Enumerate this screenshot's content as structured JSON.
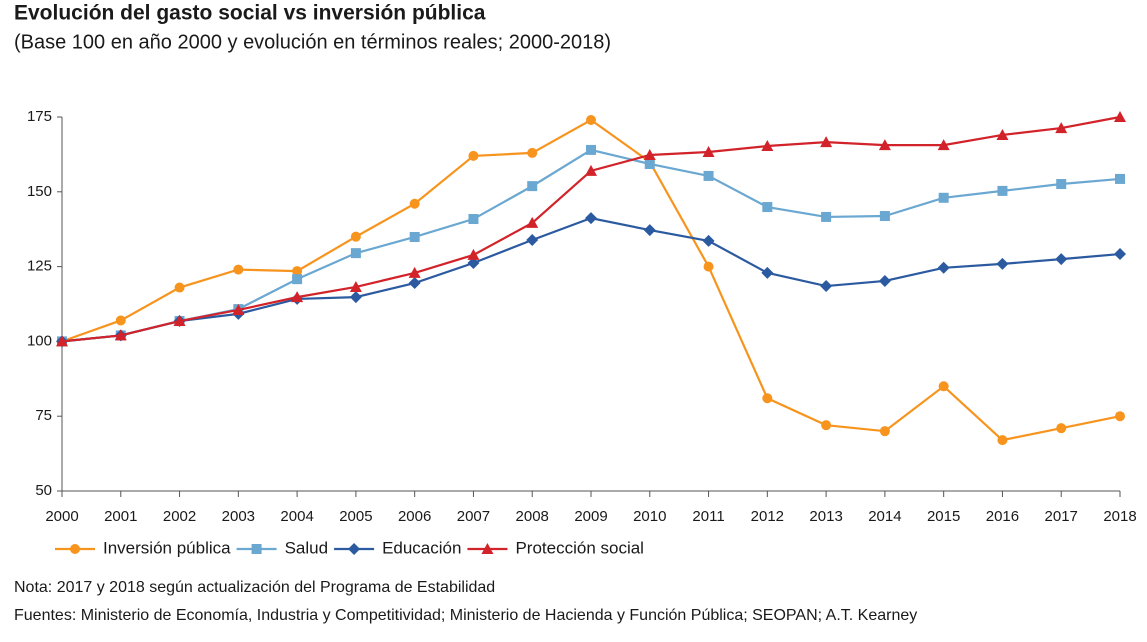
{
  "chart_data": {
    "type": "line",
    "title": "Evolución del gasto social vs inversión pública",
    "subtitle": "(Base 100 en año 2000 y evolución en términos reales; 2000-2018)",
    "categories": [
      "2000",
      "2001",
      "2002",
      "2003",
      "2004",
      "2005",
      "2006",
      "2007",
      "2008",
      "2009",
      "2010",
      "2011",
      "2012",
      "2013",
      "2014",
      "2015",
      "2016",
      "2017",
      "2018"
    ],
    "ylim": [
      50,
      175
    ],
    "yticks": [
      50,
      75,
      100,
      125,
      150,
      175
    ],
    "grid": false,
    "legend": "bottom",
    "series": [
      {
        "name": "Inversión pública",
        "color": "#f7941d",
        "marker": "circle",
        "values": [
          100,
          107,
          118,
          124,
          123.5,
          135,
          146,
          162,
          163,
          174,
          160,
          125,
          81,
          72,
          70,
          85,
          67,
          71,
          75
        ]
      },
      {
        "name": "Salud",
        "color": "#6aa7d1",
        "marker": "square",
        "values": [
          100,
          102,
          106.8,
          110.8,
          120.8,
          129.5,
          134.9,
          140.9,
          151.9,
          164,
          159.3,
          155.3,
          144.9,
          141.6,
          141.9,
          148,
          150.3,
          152.6,
          154.3
        ]
      },
      {
        "name": "Educación",
        "color": "#2c5aa0",
        "marker": "diamond",
        "values": [
          100,
          102,
          106.8,
          109.2,
          114.2,
          114.8,
          119.5,
          126.2,
          133.9,
          141.2,
          137.2,
          133.6,
          122.9,
          118.5,
          120.2,
          124.6,
          125.9,
          127.5,
          129.2
        ]
      },
      {
        "name": "Protección social",
        "color": "#d2232a",
        "marker": "triangle",
        "values": [
          100,
          102,
          106.8,
          110.5,
          114.8,
          118.2,
          122.9,
          128.9,
          139.6,
          157,
          162.3,
          163.3,
          165.3,
          166.6,
          165.6,
          165.6,
          169,
          171.3,
          175
        ]
      }
    ],
    "notes": [
      "Nota: 2017 y 2018 según actualización del Programa de Estabilidad",
      "Fuentes: Ministerio de Economía, Industria y Competitividad; Ministerio de Hacienda y Función Pública; SEOPAN; A.T. Kearney"
    ]
  }
}
